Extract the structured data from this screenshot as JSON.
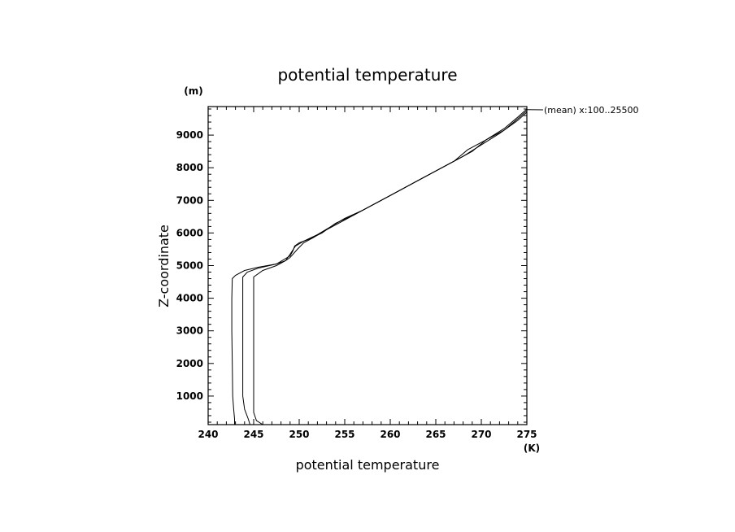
{
  "chart_data": {
    "type": "line",
    "title": "potential temperature",
    "xlabel": "potential temperature",
    "ylabel": "Z-coordinate",
    "x_unit": "(K)",
    "y_unit": "(m)",
    "xlim": [
      240,
      275
    ],
    "ylim": [
      125,
      9875
    ],
    "x_ticks": [
      240,
      245,
      250,
      255,
      260,
      265,
      270,
      275
    ],
    "y_ticks": [
      1000,
      2000,
      3000,
      4000,
      5000,
      6000,
      7000,
      8000,
      9000
    ],
    "grid": false,
    "annotation": "(mean) x:100..25500",
    "series": [
      {
        "points": [
          [
            242.9,
            125
          ],
          [
            242.9,
            300
          ],
          [
            242.8,
            600
          ],
          [
            242.7,
            1000
          ],
          [
            242.65,
            2000
          ],
          [
            242.6,
            3000
          ],
          [
            242.6,
            4000
          ],
          [
            242.65,
            4600
          ],
          [
            243.0,
            4700
          ],
          [
            244.0,
            4850
          ],
          [
            245.5,
            4950
          ],
          [
            247.5,
            5050
          ],
          [
            249.0,
            5300
          ],
          [
            249.3,
            5450
          ],
          [
            249.5,
            5600
          ],
          [
            250.0,
            5700
          ],
          [
            251.0,
            5800
          ],
          [
            252.5,
            6000
          ],
          [
            254.0,
            6300
          ],
          [
            256.0,
            6550
          ],
          [
            258.0,
            6850
          ],
          [
            260.0,
            7150
          ],
          [
            262.0,
            7450
          ],
          [
            264.0,
            7750
          ],
          [
            266.0,
            8050
          ],
          [
            268.0,
            8350
          ],
          [
            270.0,
            8700
          ],
          [
            272.0,
            9050
          ],
          [
            274.0,
            9450
          ],
          [
            275.0,
            9700
          ]
        ]
      },
      {
        "points": [
          [
            244.6,
            125
          ],
          [
            244.4,
            300
          ],
          [
            244.0,
            600
          ],
          [
            243.8,
            1000
          ],
          [
            243.8,
            2000
          ],
          [
            243.8,
            3000
          ],
          [
            243.8,
            4000
          ],
          [
            243.8,
            4650
          ],
          [
            244.3,
            4800
          ],
          [
            245.5,
            4920
          ],
          [
            247.5,
            5050
          ],
          [
            248.5,
            5150
          ],
          [
            249.0,
            5350
          ],
          [
            249.6,
            5600
          ],
          [
            250.5,
            5750
          ],
          [
            252.0,
            5950
          ],
          [
            253.5,
            6200
          ],
          [
            255.0,
            6450
          ],
          [
            257.0,
            6700
          ],
          [
            259.0,
            7000
          ],
          [
            261.0,
            7300
          ],
          [
            263.0,
            7600
          ],
          [
            265.0,
            7900
          ],
          [
            267.0,
            8200
          ],
          [
            269.0,
            8500
          ],
          [
            270.5,
            8850
          ],
          [
            272.5,
            9150
          ],
          [
            274.0,
            9500
          ],
          [
            275.0,
            9750
          ]
        ]
      },
      {
        "points": [
          [
            246.0,
            125
          ],
          [
            245.3,
            250
          ],
          [
            245.0,
            500
          ],
          [
            245.0,
            1000
          ],
          [
            245.0,
            2000
          ],
          [
            245.0,
            3000
          ],
          [
            245.0,
            4000
          ],
          [
            245.0,
            4650
          ],
          [
            246.0,
            4850
          ],
          [
            247.5,
            5000
          ],
          [
            248.5,
            5150
          ],
          [
            249.0,
            5250
          ],
          [
            249.8,
            5500
          ],
          [
            250.5,
            5700
          ],
          [
            251.5,
            5850
          ],
          [
            253.0,
            6100
          ],
          [
            255.0,
            6400
          ],
          [
            257.0,
            6700
          ],
          [
            259.0,
            7000
          ],
          [
            261.0,
            7300
          ],
          [
            263.0,
            7600
          ],
          [
            265.0,
            7900
          ],
          [
            267.0,
            8200
          ],
          [
            268.5,
            8550
          ],
          [
            270.5,
            8850
          ],
          [
            272.5,
            9200
          ],
          [
            274.0,
            9550
          ],
          [
            275.0,
            9800
          ]
        ]
      }
    ]
  }
}
